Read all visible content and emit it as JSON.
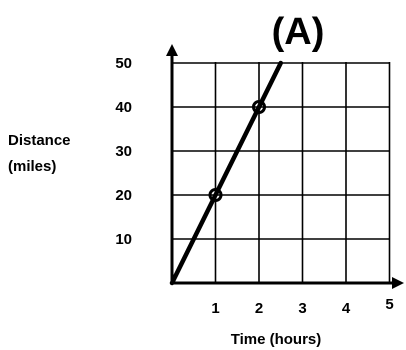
{
  "chart_data": {
    "type": "line",
    "title": "(A)",
    "xlabel": "Time (hours)",
    "ylabel_line1": "Distance",
    "ylabel_line2": "(miles)",
    "x_ticks": [
      1,
      2,
      3,
      4,
      5
    ],
    "y_ticks": [
      10,
      20,
      30,
      40,
      50
    ],
    "xlim": [
      0,
      5
    ],
    "ylim": [
      0,
      50
    ],
    "grid": true,
    "series": [
      {
        "x": [
          0,
          2.5
        ],
        "y": [
          0,
          50
        ]
      }
    ],
    "points": [
      {
        "x": 1,
        "y": 20
      },
      {
        "x": 2,
        "y": 40
      }
    ],
    "colors": {
      "grid": "#000000",
      "line": "#000000"
    }
  }
}
